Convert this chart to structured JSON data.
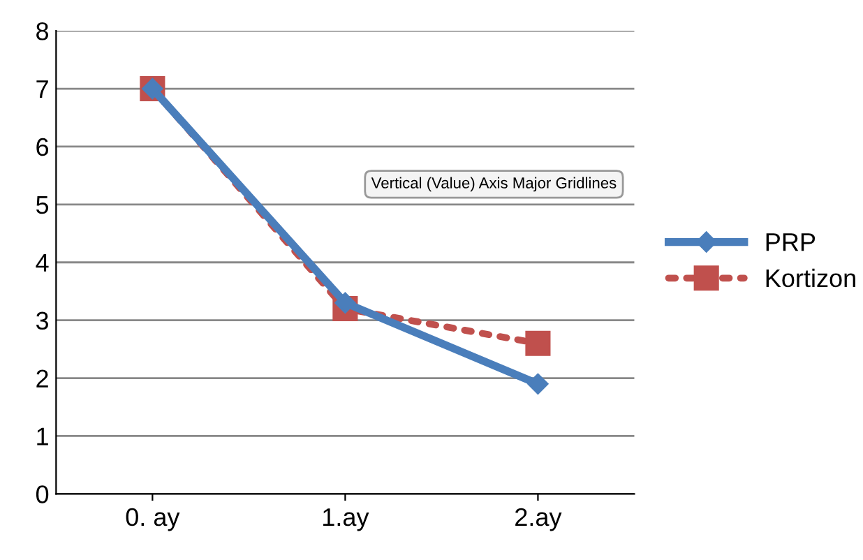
{
  "chart_data": {
    "type": "line",
    "categories": [
      "0. ay",
      "1.ay",
      "2.ay"
    ],
    "series": [
      {
        "name": "PRP",
        "color": "#4a7ebb",
        "values": [
          7,
          3.3,
          1.9
        ],
        "marker": "diamond",
        "line_style": "solid"
      },
      {
        "name": "Kortizon",
        "color": "#c0504d",
        "values": [
          7,
          3.2,
          2.6
        ],
        "marker": "square",
        "line_style": "dotted"
      }
    ],
    "ylim": [
      0,
      8
    ],
    "yticks": [
      0,
      1,
      2,
      3,
      4,
      5,
      6,
      7,
      8
    ],
    "grid": "y",
    "legend": "right",
    "annotations": [
      "Vertical (Value) Axis Major Gridlines"
    ]
  }
}
